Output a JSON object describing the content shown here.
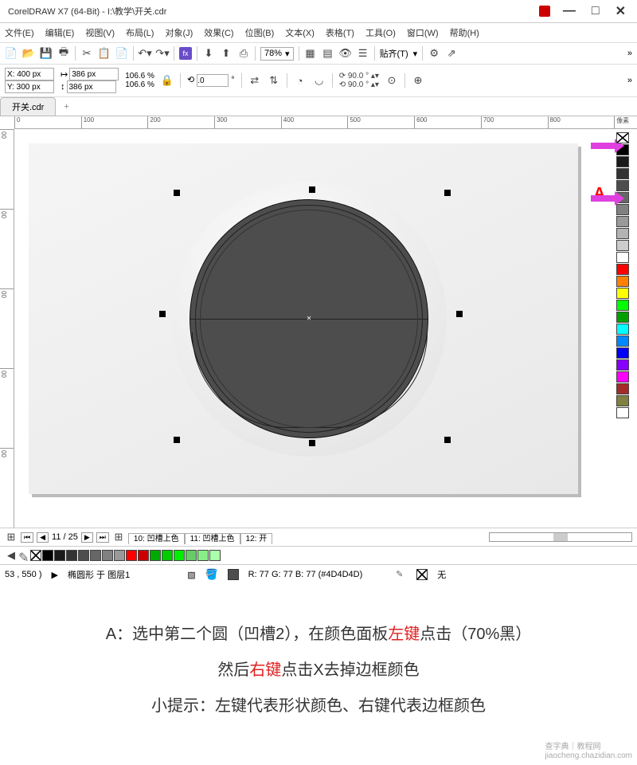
{
  "title": "CorelDRAW X7 (64-Bit) - I:\\教学\\开关.cdr",
  "menu": [
    "文件(E)",
    "编辑(E)",
    "视图(V)",
    "布局(L)",
    "对象(J)",
    "效果(C)",
    "位图(B)",
    "文本(X)",
    "表格(T)",
    "工具(O)",
    "窗口(W)",
    "帮助(H)"
  ],
  "zoom": "78%",
  "align_label": "贴齐(T)",
  "coords": {
    "x": "X: 400 px",
    "y": "Y: 300 px",
    "w": "386 px",
    "h": "386 px",
    "sx": "106.6",
    "sy": "106.6",
    "pct": "%"
  },
  "rotation": ".0",
  "angle1": "90.0",
  "angle2": "90.0",
  "tab_name": "开关.cdr",
  "ruler_vals": [
    "0",
    "100",
    "200",
    "300",
    "400",
    "500",
    "600",
    "700",
    "800"
  ],
  "ruler_unit": "像素",
  "ruler_y": [
    "00",
    "00",
    "00",
    "00",
    "00"
  ],
  "page_counter": "11 / 25",
  "page_tabs": [
    {
      "l": "10: 凹槽上色"
    },
    {
      "l": "11: 凹槽上色"
    },
    {
      "l": "12: 开"
    }
  ],
  "status_pos": "53 , 550 )",
  "status_obj": "椭圆形 于 图层1",
  "status_fill": "R: 77 G: 77 B: 77 (#4D4D4D)",
  "status_outline": "无",
  "annotation_a": "A",
  "instr1_a": "A：选中第二个圆（凹槽2），在颜色面板",
  "instr1_b": "左键",
  "instr1_c": "点击（70%黑）",
  "instr2_a": "然后",
  "instr2_b": "右键",
  "instr2_c": "点击X去掉边框颜色",
  "instr3": "小提示：左键代表形状颜色、右键代表边框颜色",
  "watermark1": "查字典｜教程网",
  "watermark2": "jiaocheng.chazidian.com",
  "palette": [
    "#000",
    "#1a1a1a",
    "#333",
    "#4d4d4d",
    "#666",
    "#808080",
    "#999",
    "#b3b3b3",
    "#ccc",
    "#fff",
    "#f00",
    "#ff8000",
    "#ff0",
    "#0f0",
    "#00a000",
    "#0ff",
    "#08f",
    "#00f",
    "#80f",
    "#f0f",
    "#a52a2a",
    "#808040",
    "#fff"
  ],
  "bottom_palette": [
    "#000",
    "#1a1a1a",
    "#333",
    "#4d4d4d",
    "#666",
    "#808080",
    "#999",
    "#f00",
    "#c00",
    "#0a0",
    "#0c0",
    "#0e0",
    "#6c6",
    "#8e8",
    "#afa"
  ]
}
